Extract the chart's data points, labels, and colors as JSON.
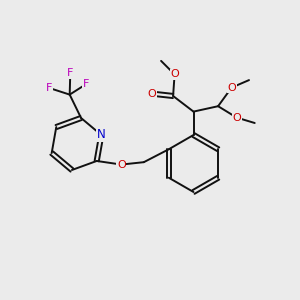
{
  "bg_color": "#ebebeb",
  "bond_color": "#111111",
  "bond_width": 1.4,
  "atom_colors": {
    "N": "#0000cc",
    "O": "#cc0000",
    "F": "#bb00bb"
  },
  "font_size": 8.0,
  "figsize": [
    3.0,
    3.0
  ],
  "dpi": 100
}
